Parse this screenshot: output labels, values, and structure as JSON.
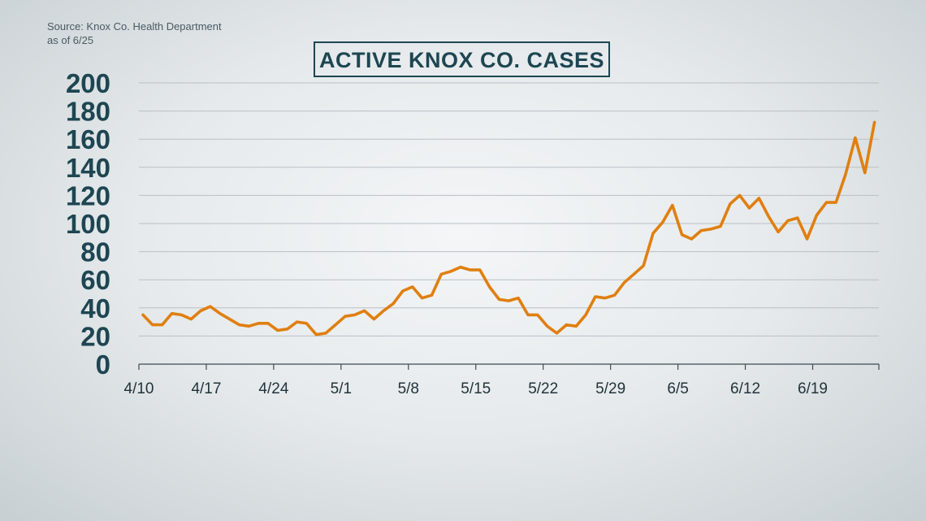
{
  "source": {
    "line1": "Source: Knox Co. Health Department",
    "line2": "as of 6/25"
  },
  "colors": {
    "line": "#e07f10",
    "title": "#1d4652",
    "grid": "#b8c0c5",
    "axis": "#3d4b52"
  },
  "chart_data": {
    "type": "line",
    "title": "ACTIVE KNOX CO. CASES",
    "xlabel": "",
    "ylabel": "",
    "ylim": [
      0,
      200
    ],
    "yticks": [
      0,
      20,
      40,
      60,
      80,
      100,
      120,
      140,
      160,
      180,
      200
    ],
    "xtick_labels": [
      "4/10",
      "4/17",
      "4/24",
      "5/1",
      "5/8",
      "5/15",
      "5/22",
      "5/29",
      "6/5",
      "6/12",
      "6/19"
    ],
    "x_start": "4/10",
    "x_end": "6/25",
    "grid": true,
    "series": [
      {
        "values": [
          35,
          28,
          28,
          36,
          35,
          32,
          38,
          41,
          36,
          32,
          28,
          27,
          29,
          29,
          24,
          25,
          30,
          29,
          21,
          22,
          28,
          34,
          35,
          38,
          32,
          38,
          43,
          52,
          55,
          47,
          49,
          64,
          66,
          69,
          67,
          67,
          55,
          46,
          45,
          47,
          35,
          35,
          27,
          22,
          28,
          27,
          35,
          48,
          47,
          49,
          58,
          64,
          70,
          93,
          101,
          113,
          92,
          89,
          95,
          96,
          98,
          114,
          120,
          111,
          118,
          105,
          94,
          102,
          104,
          89,
          106,
          115,
          115,
          135,
          161,
          136,
          172
        ]
      }
    ]
  }
}
